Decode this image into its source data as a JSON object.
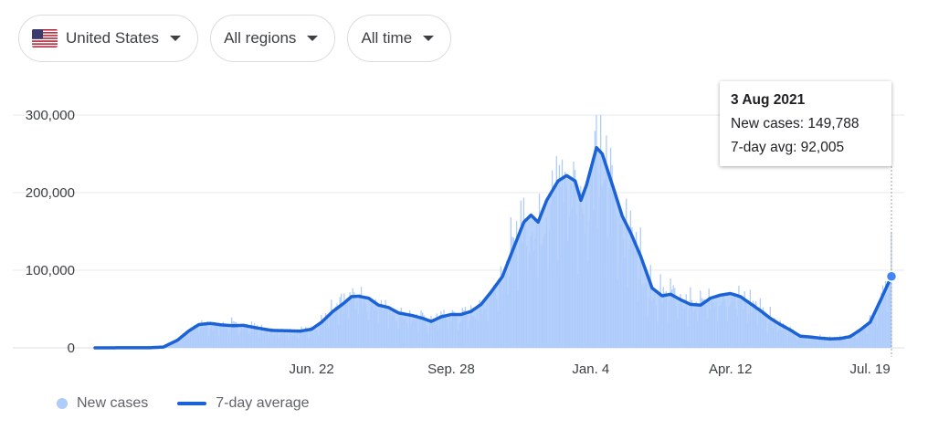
{
  "filters": {
    "country": {
      "label": "United States",
      "flag_icon": "us-flag-icon"
    },
    "region": {
      "label": "All regions"
    },
    "time": {
      "label": "All time"
    }
  },
  "tooltip": {
    "date": "3 Aug 2021",
    "new_cases": "New cases: 149,788",
    "avg": "7-day avg: 92,005"
  },
  "legend": {
    "bars_label": "New cases",
    "line_label": "7-day average"
  },
  "colors": {
    "bars": "#aecbfa",
    "line": "#1a62d6",
    "grid": "#e8eaed",
    "axis_text": "#3c4043"
  },
  "chart_data": {
    "type": "bar",
    "title": "",
    "xlabel": "",
    "ylabel": "",
    "ylim": [
      0,
      300000
    ],
    "yticks": [
      0,
      100000,
      200000,
      300000
    ],
    "ytick_labels": [
      "0",
      "100,000",
      "200,000",
      "300,000"
    ],
    "xtick_labels": [
      "Jun. 22",
      "Sep. 28",
      "Jan. 4",
      "Apr. 12",
      "Jul. 19"
    ],
    "x_range": [
      "2020-01-22",
      "2021-08-03"
    ],
    "xtick_dates": [
      "2020-06-22",
      "2020-09-28",
      "2021-01-04",
      "2021-04-12",
      "2021-07-19"
    ],
    "legend_position": "bottom-left",
    "grid": true,
    "series": [
      {
        "name": "7-day average",
        "kind": "line",
        "points": [
          [
            "2020-01-22",
            0
          ],
          [
            "2020-03-01",
            200
          ],
          [
            "2020-03-10",
            1000
          ],
          [
            "2020-03-20",
            10000
          ],
          [
            "2020-03-28",
            22000
          ],
          [
            "2020-04-04",
            30000
          ],
          [
            "2020-04-12",
            31500
          ],
          [
            "2020-04-20",
            29500
          ],
          [
            "2020-04-28",
            28500
          ],
          [
            "2020-05-05",
            29000
          ],
          [
            "2020-05-15",
            25500
          ],
          [
            "2020-05-25",
            22500
          ],
          [
            "2020-06-05",
            22000
          ],
          [
            "2020-06-14",
            21500
          ],
          [
            "2020-06-22",
            24000
          ],
          [
            "2020-06-29",
            33000
          ],
          [
            "2020-07-07",
            47000
          ],
          [
            "2020-07-15",
            58000
          ],
          [
            "2020-07-20",
            66000
          ],
          [
            "2020-07-25",
            66500
          ],
          [
            "2020-08-01",
            64000
          ],
          [
            "2020-08-08",
            55000
          ],
          [
            "2020-08-15",
            52000
          ],
          [
            "2020-08-22",
            45000
          ],
          [
            "2020-09-01",
            41500
          ],
          [
            "2020-09-08",
            38000
          ],
          [
            "2020-09-14",
            34000
          ],
          [
            "2020-09-21",
            40000
          ],
          [
            "2020-09-28",
            43000
          ],
          [
            "2020-10-05",
            43000
          ],
          [
            "2020-10-12",
            47000
          ],
          [
            "2020-10-19",
            56000
          ],
          [
            "2020-10-26",
            72000
          ],
          [
            "2020-11-03",
            92000
          ],
          [
            "2020-11-10",
            125000
          ],
          [
            "2020-11-18",
            162000
          ],
          [
            "2020-11-23",
            171000
          ],
          [
            "2020-11-28",
            162000
          ],
          [
            "2020-12-04",
            190000
          ],
          [
            "2020-12-12",
            215000
          ],
          [
            "2020-12-18",
            222000
          ],
          [
            "2020-12-24",
            215000
          ],
          [
            "2020-12-28",
            190000
          ],
          [
            "2021-01-01",
            210000
          ],
          [
            "2021-01-08",
            258000
          ],
          [
            "2021-01-12",
            250000
          ],
          [
            "2021-01-20",
            205000
          ],
          [
            "2021-01-26",
            170000
          ],
          [
            "2021-02-01",
            148000
          ],
          [
            "2021-02-08",
            118000
          ],
          [
            "2021-02-16",
            77000
          ],
          [
            "2021-02-23",
            67000
          ],
          [
            "2021-03-01",
            69000
          ],
          [
            "2021-03-08",
            62000
          ],
          [
            "2021-03-15",
            56000
          ],
          [
            "2021-03-22",
            55000
          ],
          [
            "2021-03-29",
            64000
          ],
          [
            "2021-04-05",
            68000
          ],
          [
            "2021-04-12",
            70000
          ],
          [
            "2021-04-19",
            66000
          ],
          [
            "2021-04-26",
            57000
          ],
          [
            "2021-05-03",
            48000
          ],
          [
            "2021-05-10",
            38000
          ],
          [
            "2021-05-17",
            30000
          ],
          [
            "2021-05-24",
            23000
          ],
          [
            "2021-05-31",
            15000
          ],
          [
            "2021-06-07",
            14000
          ],
          [
            "2021-06-14",
            12500
          ],
          [
            "2021-06-21",
            11500
          ],
          [
            "2021-06-28",
            12000
          ],
          [
            "2021-07-05",
            14500
          ],
          [
            "2021-07-12",
            23000
          ],
          [
            "2021-07-19",
            33000
          ],
          [
            "2021-07-26",
            60000
          ],
          [
            "2021-08-03",
            92005
          ]
        ]
      },
      {
        "name": "New cases",
        "kind": "bar",
        "values_source": "daily bars scatter around the 7-day average; peaks ~300,000 around 2021-01-08; last bar 149,788 on 2021-08-03"
      }
    ]
  }
}
